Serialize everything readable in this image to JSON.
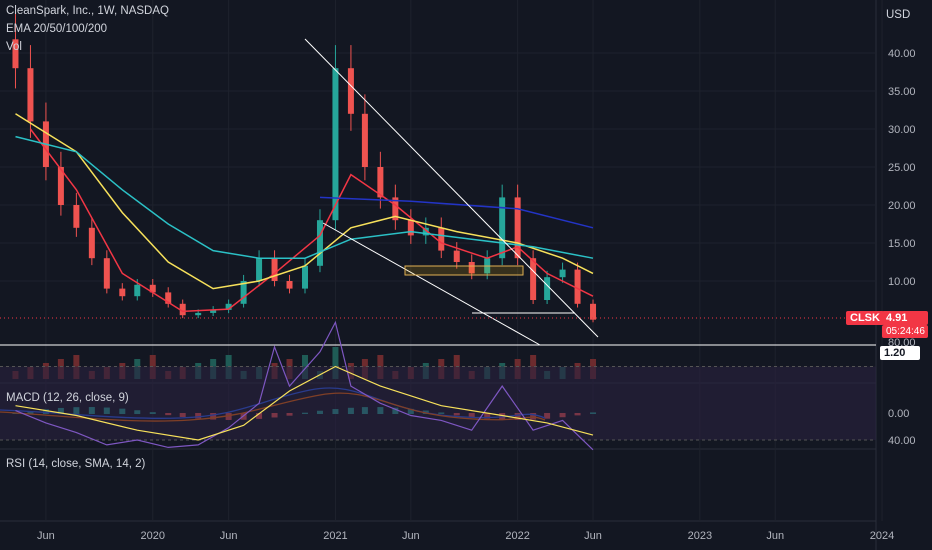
{
  "header": {
    "symbol_line": "CleanSpark, Inc., 1W, NASDAQ",
    "ema_label": "EMA 20/50/100/200",
    "vol_label": "Vol",
    "currency": "USD"
  },
  "ticker": {
    "symbol": "CLSK",
    "last_price": "4.91",
    "countdown": "05:24:46",
    "horizontal_line_label": "1.20"
  },
  "macd": {
    "label": "MACD (12, 26, close, 9)"
  },
  "rsi": {
    "label": "RSI (14, close, SMA, 14, 2)"
  },
  "colors": {
    "background": "#131722",
    "up": "#26a69a",
    "down": "#ef5350",
    "ema20": "#f23645",
    "ema50": "#f7e15b",
    "ema100": "#2bc1c6",
    "ema200": "#2334c6",
    "rsi_line": "#7e57c2",
    "rsi_band": "#2a2240",
    "badge": "#f23645"
  },
  "chart_data": [
    {
      "type": "candlestick",
      "title": "CleanSpark, Inc., 1W, NASDAQ",
      "y_axis_label": "USD",
      "x_ticks": [
        "Jun",
        "2020",
        "Jun",
        "2021",
        "Jun",
        "2022",
        "Jun",
        "2023",
        "Jun",
        "2024"
      ],
      "y_ticks": [
        10,
        15,
        20,
        25,
        30,
        35,
        40
      ],
      "y_tick_labels": [
        "10.00",
        "15.00",
        "20.00",
        "25.00",
        "30.00",
        "35.00",
        "40.00"
      ],
      "ylim": [
        5,
        43
      ],
      "series": [
        {
          "name": "Price (weekly close, approx.)",
          "points": [
            [
              "2019-04-01",
              38
            ],
            [
              "2019-05-01",
              31
            ],
            [
              "2019-06-01",
              25
            ],
            [
              "2019-07-01",
              20
            ],
            [
              "2019-08-01",
              17
            ],
            [
              "2019-09-01",
              13
            ],
            [
              "2019-10-01",
              9
            ],
            [
              "2019-11-01",
              8
            ],
            [
              "2019-12-01",
              9.5
            ],
            [
              "2020-01-01",
              8.5
            ],
            [
              "2020-02-01",
              7
            ],
            [
              "2020-03-01",
              5.5
            ],
            [
              "2020-04-01",
              5.8
            ],
            [
              "2020-05-01",
              6.2
            ],
            [
              "2020-06-01",
              7
            ],
            [
              "2020-07-01",
              10
            ],
            [
              "2020-08-01",
              13
            ],
            [
              "2020-09-01",
              10
            ],
            [
              "2020-10-01",
              9
            ],
            [
              "2020-11-01",
              12
            ],
            [
              "2020-12-01",
              18
            ],
            [
              "2021-01-01",
              38
            ],
            [
              "2021-02-01",
              32
            ],
            [
              "2021-03-01",
              25
            ],
            [
              "2021-04-01",
              21
            ],
            [
              "2021-05-01",
              18
            ],
            [
              "2021-06-01",
              16
            ],
            [
              "2021-07-01",
              17
            ],
            [
              "2021-08-01",
              14
            ],
            [
              "2021-09-01",
              12.5
            ],
            [
              "2021-10-01",
              11
            ],
            [
              "2021-11-01",
              13
            ],
            [
              "2021-12-01",
              21
            ],
            [
              "2022-01-01",
              13
            ],
            [
              "2022-02-01",
              7.5
            ],
            [
              "2022-03-01",
              10.5
            ],
            [
              "2022-04-01",
              11.5
            ],
            [
              "2022-05-01",
              7
            ],
            [
              "2022-06-01",
              4.91
            ]
          ]
        },
        {
          "name": "EMA 20",
          "points": [
            [
              "2019-05-01",
              30
            ],
            [
              "2019-08-01",
              22
            ],
            [
              "2019-11-01",
              11
            ],
            [
              "2020-03-01",
              6
            ],
            [
              "2020-06-01",
              6.3
            ],
            [
              "2020-09-01",
              11
            ],
            [
              "2020-12-01",
              16
            ],
            [
              "2021-02-01",
              24
            ],
            [
              "2021-05-01",
              20
            ],
            [
              "2021-08-01",
              15
            ],
            [
              "2021-11-01",
              13
            ],
            [
              "2022-01-01",
              14.5
            ],
            [
              "2022-03-01",
              11
            ],
            [
              "2022-06-01",
              8
            ]
          ]
        },
        {
          "name": "EMA 50",
          "points": [
            [
              "2019-04-01",
              32
            ],
            [
              "2019-08-01",
              27
            ],
            [
              "2019-11-01",
              19
            ],
            [
              "2020-02-01",
              12.5
            ],
            [
              "2020-05-01",
              9
            ],
            [
              "2020-08-01",
              10
            ],
            [
              "2020-11-01",
              12
            ],
            [
              "2021-02-01",
              17
            ],
            [
              "2021-05-01",
              18.5
            ],
            [
              "2021-09-01",
              16.5
            ],
            [
              "2022-01-01",
              15
            ],
            [
              "2022-04-01",
              13
            ],
            [
              "2022-06-01",
              11
            ]
          ]
        },
        {
          "name": "EMA 100",
          "points": [
            [
              "2019-04-01",
              29
            ],
            [
              "2019-08-01",
              27
            ],
            [
              "2019-11-01",
              22
            ],
            [
              "2020-02-01",
              17.5
            ],
            [
              "2020-05-01",
              14
            ],
            [
              "2020-08-01",
              13
            ],
            [
              "2020-11-01",
              13
            ],
            [
              "2021-02-01",
              15.5
            ],
            [
              "2021-06-01",
              16.5
            ],
            [
              "2021-10-01",
              15.5
            ],
            [
              "2022-02-01",
              14.5
            ],
            [
              "2022-06-01",
              13
            ]
          ]
        },
        {
          "name": "EMA 200",
          "points": [
            [
              "2020-12-01",
              21
            ],
            [
              "2021-06-01",
              20.5
            ],
            [
              "2022-01-01",
              19.5
            ],
            [
              "2022-06-01",
              17
            ]
          ]
        }
      ]
    },
    {
      "type": "line",
      "title": "MACD (12, 26, close, 9)",
      "y_ticks": [
        0
      ],
      "y_tick_labels": [
        "0.00"
      ]
    },
    {
      "type": "line",
      "title": "RSI (14, close, SMA, 14, 2)",
      "y_ticks": [
        40,
        80
      ],
      "y_tick_labels": [
        "40.00",
        "80.00"
      ],
      "ylim": [
        30,
        95
      ],
      "band": [
        40,
        70
      ],
      "series": [
        {
          "name": "RSI",
          "points": [
            [
              "2019-04-01",
              52
            ],
            [
              "2019-06-01",
              47
            ],
            [
              "2019-08-01",
              43
            ],
            [
              "2019-10-01",
              38
            ],
            [
              "2019-12-01",
              40
            ],
            [
              "2020-02-01",
              37
            ],
            [
              "2020-04-01",
              38
            ],
            [
              "2020-06-01",
              45
            ],
            [
              "2020-08-01",
              55
            ],
            [
              "2020-09-01",
              78
            ],
            [
              "2020-10-01",
              62
            ],
            [
              "2020-12-01",
              76
            ],
            [
              "2021-01-01",
              88
            ],
            [
              "2021-02-01",
              62
            ],
            [
              "2021-04-01",
              55
            ],
            [
              "2021-06-01",
              50
            ],
            [
              "2021-08-01",
              48
            ],
            [
              "2021-10-01",
              44
            ],
            [
              "2021-12-01",
              62
            ],
            [
              "2022-02-01",
              44
            ],
            [
              "2022-04-01",
              48
            ],
            [
              "2022-06-01",
              36
            ]
          ]
        },
        {
          "name": "RSI SMA",
          "points": [
            [
              "2019-04-01",
              54
            ],
            [
              "2019-08-01",
              50
            ],
            [
              "2019-12-01",
              44
            ],
            [
              "2020-04-01",
              40
            ],
            [
              "2020-07-01",
              46
            ],
            [
              "2020-10-01",
              60
            ],
            [
              "2021-01-01",
              70
            ],
            [
              "2021-04-01",
              62
            ],
            [
              "2021-08-01",
              54
            ],
            [
              "2021-12-01",
              50
            ],
            [
              "2022-03-01",
              47
            ],
            [
              "2022-06-01",
              42
            ]
          ]
        }
      ]
    }
  ]
}
